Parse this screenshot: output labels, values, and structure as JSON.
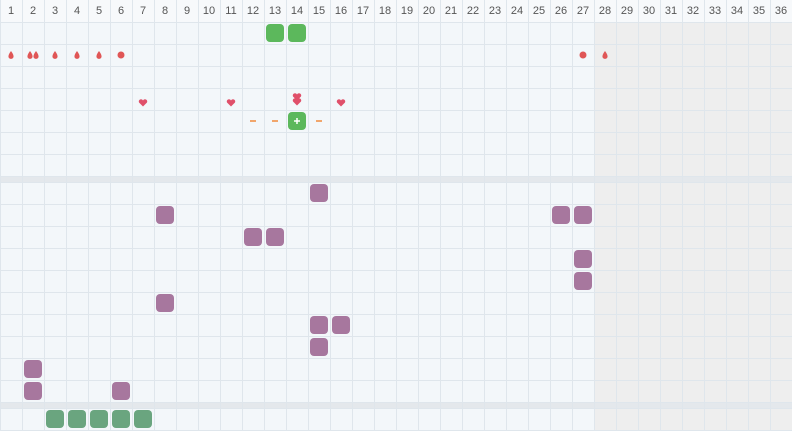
{
  "columns": [
    1,
    2,
    3,
    4,
    5,
    6,
    7,
    8,
    9,
    10,
    11,
    12,
    13,
    14,
    15,
    16,
    17,
    18,
    19,
    20,
    21,
    22,
    23,
    24,
    25,
    26,
    27,
    28,
    29,
    30,
    31,
    32,
    33,
    34,
    35,
    36
  ]
}
